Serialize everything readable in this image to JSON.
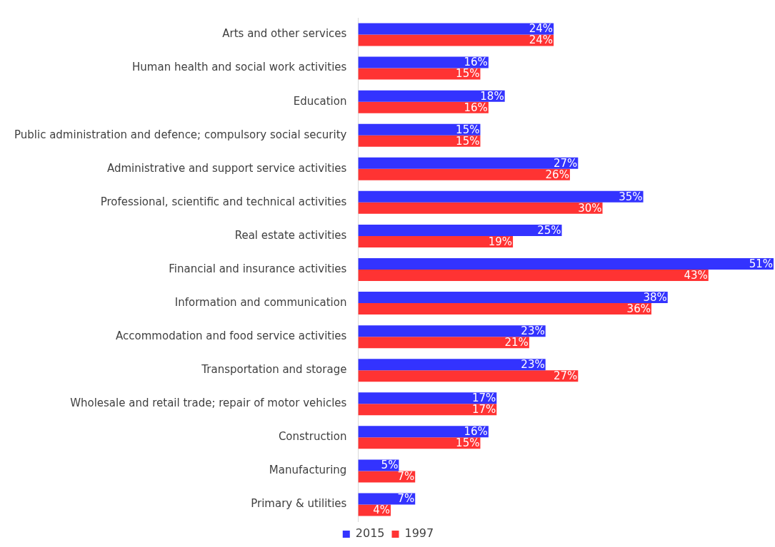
{
  "chart_data": {
    "type": "bar",
    "orientation": "horizontal",
    "legend": "bottom",
    "categories": [
      "Arts and other services",
      "Human health and social work activities",
      "Education",
      "Public administration and defence; compulsory social security",
      "Administrative and support service activities",
      "Professional, scientific and technical activities",
      "Real estate activities",
      "Financial and insurance activities",
      "Information and communication",
      "Accommodation and food service activities",
      "Transportation and storage",
      "Wholesale and retail trade; repair of motor vehicles",
      "Construction",
      "Manufacturing",
      "Primary & utilities"
    ],
    "series": [
      {
        "name": "2015",
        "color": "#3333ff",
        "values": [
          24,
          16,
          18,
          15,
          27,
          35,
          25,
          51,
          38,
          23,
          23,
          17,
          16,
          5,
          7
        ],
        "value_labels": [
          "24%",
          "16%",
          "18%",
          "15%",
          "27%",
          "35%",
          "25%",
          "51%",
          "38%",
          "23%",
          "23%",
          "17%",
          "16%",
          "5%",
          "7%"
        ]
      },
      {
        "name": "1997",
        "color": "#ff3333",
        "values": [
          24,
          15,
          16,
          15,
          26,
          30,
          19,
          43,
          36,
          21,
          27,
          17,
          15,
          7,
          4
        ],
        "value_labels": [
          "24%",
          "15%",
          "16%",
          "15%",
          "26%",
          "30%",
          "19%",
          "43%",
          "36%",
          "21%",
          "27%",
          "17%",
          "15%",
          "7%",
          "4%"
        ]
      }
    ]
  }
}
